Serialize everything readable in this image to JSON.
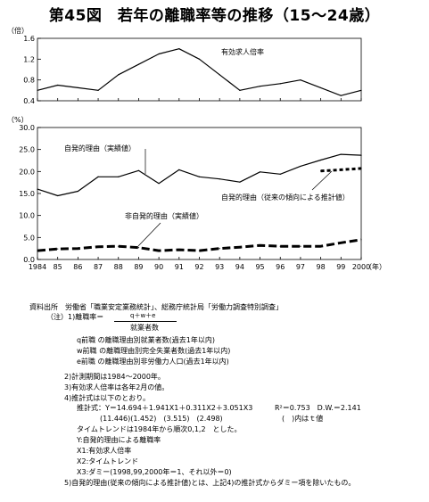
{
  "title": "第45図　若年の離職率等の推移（15～24歳）",
  "chart_data": [
    {
      "type": "line",
      "unit": "（倍）",
      "ylim": [
        0.4,
        1.6
      ],
      "ytick_labels": [
        "0.4",
        "0.8",
        "1.2",
        "1.6"
      ],
      "x": [
        1984,
        1985,
        1986,
        1987,
        1988,
        1989,
        1990,
        1991,
        1992,
        1993,
        1994,
        1995,
        1996,
        1997,
        1998,
        1999,
        2000
      ],
      "series": [
        {
          "name": "有効求人倍率",
          "style": "solid",
          "values": [
            0.6,
            0.7,
            0.65,
            0.6,
            0.9,
            1.1,
            1.3,
            1.4,
            1.2,
            0.9,
            0.6,
            0.68,
            0.73,
            0.8,
            0.65,
            0.5,
            0.6
          ]
        }
      ],
      "grid": false
    },
    {
      "type": "line",
      "unit": "（%）",
      "ylim": [
        0,
        30
      ],
      "ytick_labels": [
        "0.0",
        "5.0",
        "10.0",
        "15.0",
        "20.0",
        "25.0",
        "30.0"
      ],
      "x": [
        1984,
        1985,
        1986,
        1987,
        1988,
        1989,
        1990,
        1991,
        1992,
        1993,
        1994,
        1995,
        1996,
        1997,
        1998,
        1999,
        2000
      ],
      "xtick_labels": [
        "1984",
        "85",
        "86",
        "87",
        "88",
        "89",
        "90",
        "91",
        "92",
        "93",
        "94",
        "95",
        "96",
        "97",
        "98",
        "99",
        "2000"
      ],
      "xunit": "（年）",
      "series": [
        {
          "name": "自発的理由（実績値）",
          "style": "solid",
          "x": [
            1984,
            1985,
            1986,
            1987,
            1988,
            1989,
            1990,
            1991,
            1992,
            1993,
            1994,
            1995,
            1996,
            1997,
            1998,
            1999,
            2000
          ],
          "values": [
            16.0,
            14.5,
            15.5,
            18.8,
            18.8,
            20.2,
            17.3,
            20.4,
            18.8,
            18.3,
            17.6,
            19.9,
            19.4,
            21.2,
            22.6,
            23.9,
            23.7
          ]
        },
        {
          "name": "自発的理由（従来の傾向による推計値）",
          "style": "dotted",
          "x": [
            1998,
            1999,
            2000
          ],
          "values": [
            20.1,
            20.4,
            20.7
          ]
        },
        {
          "name": "非自発的理由（実績値）",
          "style": "dashed",
          "x": [
            1984,
            1985,
            1986,
            1987,
            1988,
            1989,
            1990,
            1991,
            1992,
            1993,
            1994,
            1995,
            1996,
            1997,
            1998,
            1999,
            2000
          ],
          "values": [
            2.0,
            2.4,
            2.5,
            2.9,
            3.0,
            2.7,
            2.0,
            2.2,
            2.0,
            2.5,
            2.8,
            3.2,
            3.0,
            3.0,
            3.0,
            3.8,
            4.5
          ]
        }
      ],
      "grid": false
    }
  ],
  "notes": {
    "source": "資料出所　労働省「職業安定業務統計」、総務庁統計局「労働力調査特別調査」",
    "note_label": "（注）1)離職率＝",
    "numerator": "q＋w＋e",
    "denominator": "就業者数",
    "def_q": "q前職 の離職理由別就業者数(過去1年以内)",
    "def_w": "w前職 の離職理由別完全失業者数(過去1年以内)",
    "def_e": "e前職 の離職理由別非労働力人口(過去1年以内)",
    "n2": "2)計測期間は1984～2000年。",
    "n3": "3)有効求人倍率は各年2月の値。",
    "n4": "4)推計式は以下のとおり。",
    "eq1": "推計式：Y＝14.694＋1.941X1＋0.311X2＋3.051X3",
    "eq1_r": "R²＝0.753　D.W.＝2.141",
    "eq2": "(11.446)(1.452)　(3.515)　(2.498)",
    "eq2_r": "(　)内はｔ値",
    "eq3": "タイムトレンドは1984年から順次0,1,2　とした。",
    "var_y": "Y:自発的理由による離職率",
    "var_x1": "X1:有効求人倍率",
    "var_x2": "X2:タイムトレンド",
    "var_x3": "X3:ダミー(1998,99,2000年＝1、それ以外＝0)",
    "n5": "5)自発的理由(従来の傾向による推計値)とは、上記4)の推計式からダミー項を除いたもの。"
  }
}
